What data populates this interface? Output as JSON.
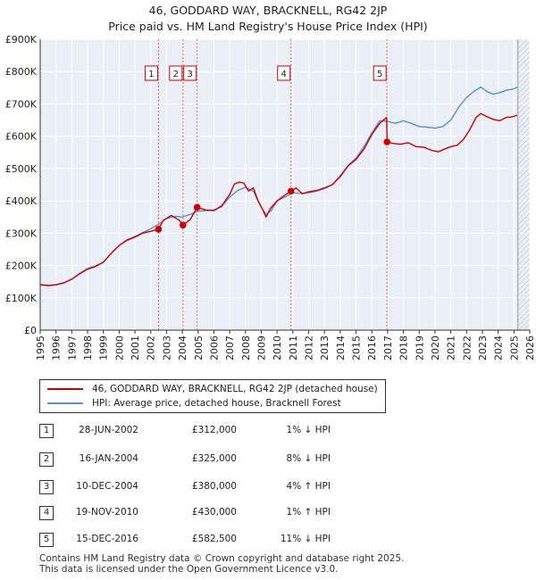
{
  "title_line1": "46, GODDARD WAY, BRACKNELL, RG42 2JP",
  "title_line2": "Price paid vs. HM Land Registry's House Price Index (HPI)",
  "chart_data": {
    "type": "line",
    "ylim": [
      0,
      900000
    ],
    "xlim": [
      1995,
      2026
    ],
    "y_ticks": [
      0,
      100000,
      200000,
      300000,
      400000,
      500000,
      600000,
      700000,
      800000,
      900000
    ],
    "y_tick_labels": [
      "£0",
      "£100K",
      "£200K",
      "£300K",
      "£400K",
      "£500K",
      "£600K",
      "£700K",
      "£800K",
      "£900K"
    ],
    "x_ticks": [
      1995,
      1996,
      1997,
      1998,
      1999,
      2000,
      2001,
      2002,
      2003,
      2004,
      2005,
      2006,
      2007,
      2008,
      2009,
      2010,
      2011,
      2012,
      2013,
      2014,
      2015,
      2016,
      2017,
      2018,
      2019,
      2020,
      2021,
      2022,
      2023,
      2024,
      2025,
      2026
    ],
    "x_tick_labels": [
      "1995",
      "1996",
      "1997",
      "1998",
      "1999",
      "2000",
      "2001",
      "2002",
      "2003",
      "2004",
      "2005",
      "2006",
      "2007",
      "2008",
      "2009",
      "2010",
      "2011",
      "2012",
      "2013",
      "2014",
      "2015",
      "2016",
      "2017",
      "2018",
      "2019",
      "2020",
      "2021",
      "2022",
      "2023",
      "2024",
      "2025",
      "2026"
    ],
    "grid": true,
    "hatch_after": 2025.25,
    "series": [
      {
        "name": "46, GODDARD WAY, BRACKNELL, RG42 2JP (detached house)",
        "color": "#cc0000",
        "x": [
          1995.0,
          1995.5,
          1996.0,
          1996.5,
          1997.0,
          1997.5,
          1998.0,
          1998.5,
          1999.0,
          1999.5,
          2000.0,
          2000.5,
          2001.0,
          2001.5,
          2002.0,
          2002.49,
          2002.8,
          2003.3,
          2003.8,
          2004.04,
          2004.5,
          2004.94,
          2005.5,
          2006.0,
          2006.5,
          2007.0,
          2007.3,
          2007.6,
          2007.9,
          2008.2,
          2008.5,
          2008.8,
          2009.1,
          2009.3,
          2009.6,
          2010.0,
          2010.5,
          2010.88,
          2011.2,
          2011.6,
          2012.0,
          2012.5,
          2013.0,
          2013.5,
          2014.0,
          2014.5,
          2015.0,
          2015.5,
          2016.0,
          2016.5,
          2016.94,
          2016.97,
          2017.3,
          2017.8,
          2018.3,
          2018.8,
          2019.3,
          2019.8,
          2020.2,
          2020.6,
          2021.0,
          2021.4,
          2021.8,
          2022.2,
          2022.6,
          2022.9,
          2023.3,
          2023.7,
          2024.1,
          2024.5,
          2024.9,
          2025.2
        ],
        "values": [
          141000,
          138000,
          140000,
          146000,
          158000,
          175000,
          190000,
          198000,
          210000,
          238000,
          262000,
          278000,
          288000,
          300000,
          306000,
          312000,
          340000,
          355000,
          340000,
          325000,
          342000,
          380000,
          372000,
          370000,
          385000,
          420000,
          452000,
          458000,
          455000,
          430000,
          440000,
          400000,
          372000,
          350000,
          378000,
          400000,
          418000,
          430000,
          440000,
          422000,
          428000,
          432000,
          440000,
          450000,
          475000,
          508000,
          528000,
          560000,
          605000,
          640000,
          658000,
          582500,
          578000,
          575000,
          580000,
          568000,
          566000,
          556000,
          552000,
          560000,
          568000,
          572000,
          590000,
          620000,
          658000,
          670000,
          660000,
          652000,
          648000,
          658000,
          660000,
          665000
        ]
      },
      {
        "name": "HPI: Average price, detached house, Bracknell Forest",
        "color": "#5b8fc7",
        "x": [
          1995.0,
          1995.5,
          1996.0,
          1996.5,
          1997.0,
          1997.5,
          1998.0,
          1998.5,
          1999.0,
          1999.5,
          2000.0,
          2000.5,
          2001.0,
          2001.5,
          2002.0,
          2002.5,
          2003.0,
          2003.5,
          2004.0,
          2004.5,
          2005.0,
          2005.5,
          2006.0,
          2006.5,
          2007.0,
          2007.5,
          2008.0,
          2008.5,
          2009.0,
          2009.3,
          2009.6,
          2010.0,
          2010.5,
          2011.0,
          2011.5,
          2012.0,
          2012.5,
          2013.0,
          2013.5,
          2014.0,
          2014.5,
          2015.0,
          2015.5,
          2016.0,
          2016.5,
          2017.0,
          2017.5,
          2018.0,
          2018.5,
          2019.0,
          2019.5,
          2020.0,
          2020.5,
          2021.0,
          2021.5,
          2022.0,
          2022.5,
          2022.9,
          2023.3,
          2023.7,
          2024.1,
          2024.5,
          2024.9,
          2025.2
        ],
        "values": [
          140000,
          138000,
          141000,
          147000,
          158000,
          174000,
          188000,
          196000,
          210000,
          238000,
          262000,
          280000,
          290000,
          302000,
          314000,
          328000,
          345000,
          352000,
          350000,
          358000,
          368000,
          370000,
          372000,
          382000,
          412000,
          432000,
          442000,
          430000,
          380000,
          358000,
          368000,
          400000,
          412000,
          425000,
          423000,
          425000,
          430000,
          438000,
          450000,
          478000,
          510000,
          532000,
          568000,
          610000,
          648000,
          646000,
          640000,
          648000,
          640000,
          630000,
          628000,
          625000,
          630000,
          650000,
          690000,
          720000,
          740000,
          752000,
          738000,
          730000,
          735000,
          742000,
          745000,
          752000
        ]
      }
    ],
    "transactions": [
      {
        "label": "1",
        "x": 2002.49,
        "value": 312000
      },
      {
        "label": "2",
        "x": 2004.04,
        "value": 325000
      },
      {
        "label": "3",
        "x": 2004.94,
        "value": 380000
      },
      {
        "label": "4",
        "x": 2010.88,
        "value": 430000
      },
      {
        "label": "5",
        "x": 2016.96,
        "value": 582500
      }
    ]
  },
  "legend": {
    "red_label": "46, GODDARD WAY, BRACKNELL, RG42 2JP (detached house)",
    "blue_label": "HPI: Average price, detached house, Bracknell Forest",
    "red_color": "#cc0000",
    "blue_color": "#5b8fc7"
  },
  "table": [
    {
      "num": "1",
      "date": "28-JUN-2002",
      "price": "£312,000",
      "hpi": "1% ↓ HPI"
    },
    {
      "num": "2",
      "date": "16-JAN-2004",
      "price": "£325,000",
      "hpi": "8% ↓ HPI"
    },
    {
      "num": "3",
      "date": "10-DEC-2004",
      "price": "£380,000",
      "hpi": "4% ↑ HPI"
    },
    {
      "num": "4",
      "date": "19-NOV-2010",
      "price": "£430,000",
      "hpi": "1% ↑ HPI"
    },
    {
      "num": "5",
      "date": "15-DEC-2016",
      "price": "£582,500",
      "hpi": "11% ↓ HPI"
    }
  ],
  "footer": {
    "line1": "Contains HM Land Registry data © Crown copyright and database right 2025.",
    "line2": "This data is licensed under the Open Government Licence v3.0."
  }
}
